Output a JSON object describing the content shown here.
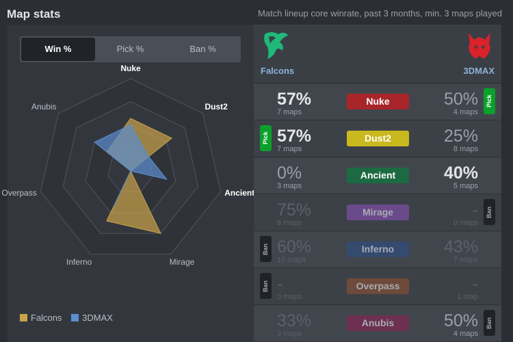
{
  "header": {
    "title": "Map stats",
    "subtitle": "Match lineup core winrate, past 3 months, min. 3 maps played"
  },
  "tabs": [
    {
      "label": "Win %",
      "active": true
    },
    {
      "label": "Pick %",
      "active": false
    },
    {
      "label": "Ban %",
      "active": false
    }
  ],
  "radar": {
    "axes": [
      "Nuke",
      "Dust2",
      "Ancient",
      "Mirage",
      "Inferno",
      "Overpass",
      "Anubis"
    ],
    "highlighted_axes": [
      "Nuke",
      "Dust2",
      "Ancient"
    ],
    "legend": [
      {
        "name": "Falcons",
        "color": "#c9a24a"
      },
      {
        "name": "3DMAX",
        "color": "#5b8fd1"
      }
    ]
  },
  "chart_data": {
    "type": "radar",
    "categories": [
      "Nuke",
      "Dust2",
      "Ancient",
      "Mirage",
      "Inferno",
      "Overpass",
      "Anubis"
    ],
    "series": [
      {
        "name": "Falcons",
        "values": [
          57,
          57,
          0,
          75,
          60,
          0,
          33
        ]
      },
      {
        "name": "3DMAX",
        "values": [
          50,
          25,
          40,
          0,
          43,
          0,
          50
        ]
      }
    ],
    "ylim": [
      0,
      100
    ]
  },
  "teams": {
    "left": {
      "name": "Falcons",
      "logo": "falcon-icon",
      "color": "#1fb97a"
    },
    "right": {
      "name": "3DMAX",
      "logo": "demon-icon",
      "color": "#d9222a"
    }
  },
  "maps": [
    {
      "name": "Nuke",
      "color": "#a8252a",
      "left_pct": "57%",
      "left_maps": "7 maps",
      "right_pct": "50%",
      "right_maps": "4 maps",
      "left_action": "",
      "right_action": "Pick",
      "left_style": "bold",
      "right_style": "light",
      "dim": false
    },
    {
      "name": "Dust2",
      "color": "#c9b81e",
      "left_pct": "57%",
      "left_maps": "7 maps",
      "right_pct": "25%",
      "right_maps": "8 maps",
      "left_action": "Pick",
      "right_action": "",
      "left_style": "bold",
      "right_style": "light",
      "dim": false
    },
    {
      "name": "Ancient",
      "color": "#1d6a42",
      "left_pct": "0%",
      "left_maps": "3 maps",
      "right_pct": "40%",
      "right_maps": "5 maps",
      "left_action": "",
      "right_action": "",
      "left_style": "light",
      "right_style": "bold",
      "dim": false
    },
    {
      "name": "Mirage",
      "color": "#6a4a8a",
      "left_pct": "75%",
      "left_maps": "8 maps",
      "right_pct": "-",
      "right_maps": "0 maps",
      "left_action": "",
      "right_action": "Ban",
      "left_style": "dim",
      "right_style": "dim",
      "dim": true
    },
    {
      "name": "Inferno",
      "color": "#344a6e",
      "left_pct": "60%",
      "left_maps": "10 maps",
      "right_pct": "43%",
      "right_maps": "7 maps",
      "left_action": "Ban",
      "right_action": "",
      "left_style": "dim",
      "right_style": "dim",
      "dim": true
    },
    {
      "name": "Overpass",
      "color": "#6e4a3a",
      "left_pct": "-",
      "left_maps": "0 maps",
      "right_pct": "-",
      "right_maps": "1 map",
      "left_action": "Ban",
      "right_action": "",
      "left_style": "dim",
      "right_style": "dim",
      "dim": true
    },
    {
      "name": "Anubis",
      "color": "#6e3050",
      "left_pct": "33%",
      "left_maps": "3 maps",
      "right_pct": "50%",
      "right_maps": "4 maps",
      "left_action": "",
      "right_action": "Ban",
      "left_style": "dim",
      "right_style": "light",
      "dim": true
    }
  ]
}
